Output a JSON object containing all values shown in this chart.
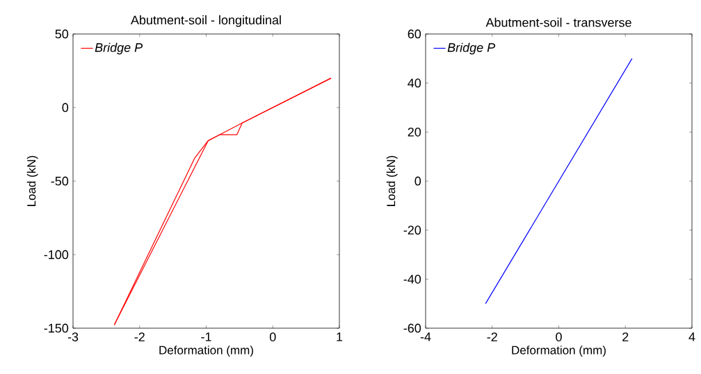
{
  "chart_data": [
    {
      "type": "line",
      "title": "Abutment-soil - longitudinal",
      "xlabel": "Deformation (mm)",
      "ylabel": "Load (kN)",
      "xlim": [
        -3,
        1
      ],
      "ylim": [
        -150,
        50
      ],
      "xticks": [
        -3,
        -2,
        -1,
        0,
        1
      ],
      "yticks": [
        -150,
        -100,
        -50,
        0,
        50
      ],
      "grid": false,
      "legend": "top left",
      "series": [
        {
          "name": "Bridge P",
          "color": "#ff0000",
          "x": [
            0.875,
            -0.46,
            -0.54,
            -0.8,
            -0.97,
            -2.38
          ],
          "values": [
            20,
            -10.5,
            -18.5,
            -18.5,
            -22.5,
            -147.8
          ]
        },
        {
          "color": "#ff0000",
          "x": [
            -2.38,
            -1.17,
            -0.97,
            -0.8,
            -0.46,
            0.875
          ],
          "values": [
            -147.8,
            -34.1,
            -22.5,
            -18.5,
            -10.5,
            20
          ]
        }
      ]
    },
    {
      "type": "line",
      "title": "Abutment-soil - transverse",
      "xlabel": "Deformation (mm)",
      "ylabel": "Load (kN)",
      "xlim": [
        -4,
        4
      ],
      "ylim": [
        -60,
        60
      ],
      "xticks": [
        -4,
        -2,
        0,
        2,
        4
      ],
      "yticks": [
        -60,
        -40,
        -20,
        0,
        20,
        40,
        60
      ],
      "grid": false,
      "legend": "top left",
      "series": [
        {
          "name": "Bridge P",
          "color": "#0000ff",
          "x": [
            -2.2,
            2.2
          ],
          "values": [
            -50,
            50
          ]
        }
      ]
    }
  ]
}
